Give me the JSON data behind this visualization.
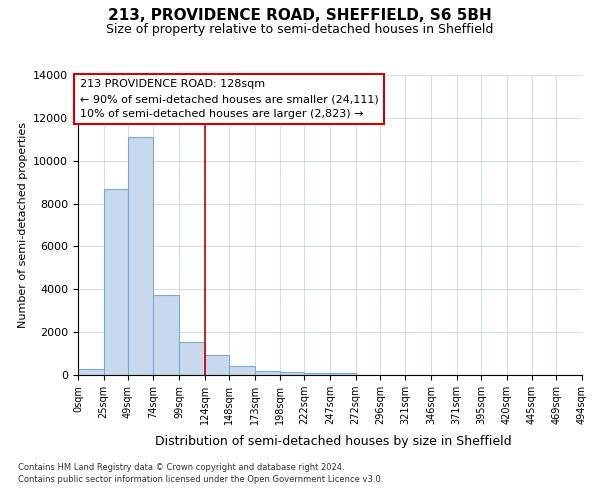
{
  "title_line1": "213, PROVIDENCE ROAD, SHEFFIELD, S6 5BH",
  "title_line2": "Size of property relative to semi-detached houses in Sheffield",
  "xlabel": "Distribution of semi-detached houses by size in Sheffield",
  "ylabel": "Number of semi-detached properties",
  "annotation_line1": "213 PROVIDENCE ROAD: 128sqm",
  "annotation_line2": "← 90% of semi-detached houses are smaller (24,111)",
  "annotation_line3": "10% of semi-detached houses are larger (2,823) →",
  "property_size": 128,
  "bar_edges": [
    0,
    25,
    49,
    74,
    99,
    124,
    148,
    173,
    198,
    222,
    247,
    272,
    296,
    321,
    346,
    371,
    395,
    420,
    445,
    469,
    494
  ],
  "bar_values": [
    300,
    8700,
    11100,
    3750,
    1550,
    950,
    400,
    200,
    150,
    100,
    100,
    0,
    0,
    0,
    0,
    0,
    0,
    0,
    0,
    0
  ],
  "bar_color": "#c8d8ed",
  "bar_edge_color": "#7aaad0",
  "vline_color": "#cc0000",
  "vline_x": 124,
  "grid_color": "#c8d8ed",
  "bg_color": "#ffffff",
  "ylim": [
    0,
    14000
  ],
  "yticks": [
    0,
    2000,
    4000,
    6000,
    8000,
    10000,
    12000,
    14000
  ],
  "footer_line1": "Contains HM Land Registry data © Crown copyright and database right 2024.",
  "footer_line2": "Contains public sector information licensed under the Open Government Licence v3.0."
}
